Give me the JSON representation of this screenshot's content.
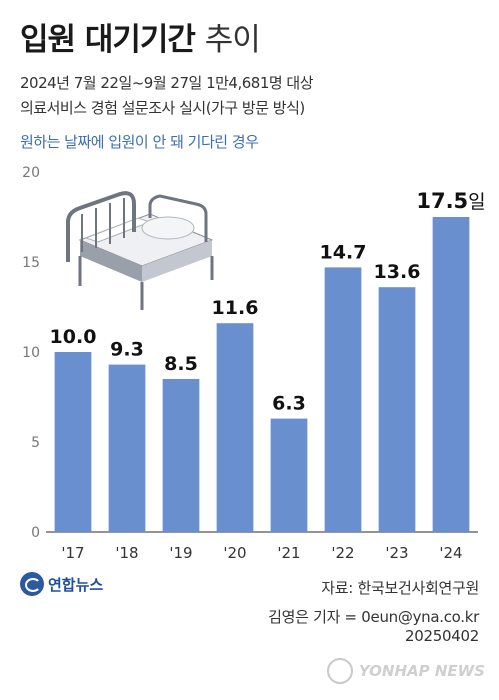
{
  "header": {
    "title_bold": "입원 대기기간",
    "title_light": "추이",
    "subtitle_line1": "2024년 7월 22일~9월 27일 1만4,681명 대상",
    "subtitle_line2": "의료서비스 경험 설문조사 실시(가구 방문 방식)",
    "note": "원하는 날짜에 입원이 안 돼 기다린 경우"
  },
  "chart_data": {
    "type": "bar",
    "categories": [
      "'17",
      "'18",
      "'19",
      "'20",
      "'21",
      "'22",
      "'23",
      "'24"
    ],
    "values": [
      10.0,
      9.3,
      8.5,
      11.6,
      6.3,
      14.7,
      13.6,
      17.5
    ],
    "value_labels": [
      "10.0",
      "9.3",
      "8.5",
      "11.6",
      "6.3",
      "14.7",
      "13.6",
      "17.5"
    ],
    "last_value_unit": "일",
    "ylim": [
      0,
      20
    ],
    "yticks": [
      0,
      5,
      10,
      15,
      20
    ],
    "bar_color": "#6a8fcf",
    "grid": false
  },
  "footer": {
    "logo_text": "연합뉴스",
    "source": "자료: 한국보건사회연구원",
    "reporter": "김영은 기자 = 0eun@yna.co.kr",
    "date": "20250402",
    "watermark": "YONHAP NEWS"
  },
  "colors": {
    "accent": "#3a6fb3",
    "bar": "#6a8fcf",
    "text": "#222222"
  }
}
